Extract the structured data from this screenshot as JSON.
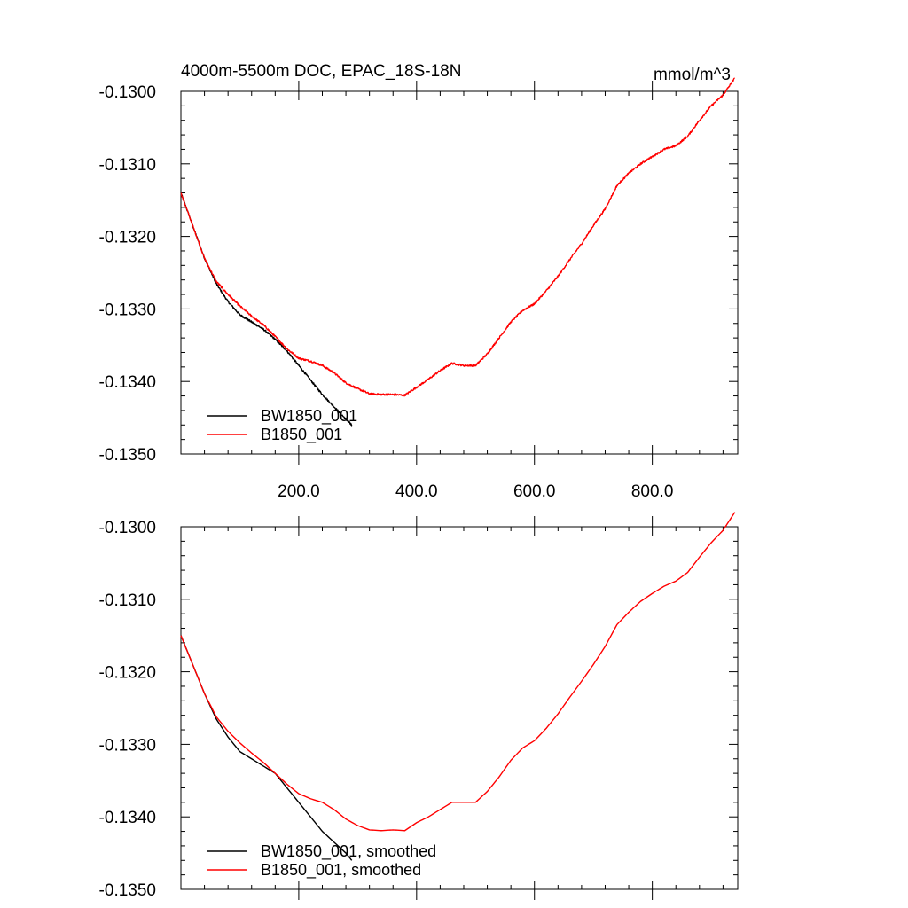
{
  "chart_data": [
    {
      "type": "line",
      "title": "4000m-5500m DOC, EPAC_18S-18N",
      "units": "mmol/m^3",
      "xlabel": "",
      "ylabel": "",
      "xlim": [
        0,
        945
      ],
      "ylim": [
        -0.135,
        -0.13
      ],
      "x_ticks": [
        200,
        400,
        600,
        800
      ],
      "x_tick_labels": [
        "200.0",
        "400.0",
        "600.0",
        "800.0"
      ],
      "y_ticks": [
        -0.13,
        -0.131,
        -0.132,
        -0.133,
        -0.134,
        -0.135
      ],
      "y_tick_labels": [
        "-0.1300",
        "-0.1310",
        "-0.1320",
        "-0.1330",
        "-0.1340",
        "-0.1350"
      ],
      "legend_position": "bottom-left",
      "noisy": true,
      "series": [
        {
          "name": "BW1850_001",
          "color": "#000000",
          "x": [
            0,
            20,
            40,
            60,
            80,
            100,
            120,
            140,
            160,
            180,
            200,
            220,
            240,
            260,
            280,
            290
          ],
          "y": [
            -0.1314,
            -0.13185,
            -0.1323,
            -0.13265,
            -0.1329,
            -0.13308,
            -0.13318,
            -0.13328,
            -0.13342,
            -0.13358,
            -0.13378,
            -0.13398,
            -0.13418,
            -0.13435,
            -0.13452,
            -0.1346
          ]
        },
        {
          "name": "B1850_001",
          "color": "#ff0000",
          "x": [
            0,
            20,
            40,
            60,
            80,
            100,
            120,
            140,
            160,
            180,
            200,
            220,
            240,
            260,
            280,
            300,
            320,
            340,
            360,
            380,
            400,
            420,
            440,
            460,
            480,
            500,
            520,
            540,
            560,
            580,
            600,
            620,
            640,
            660,
            680,
            700,
            720,
            740,
            760,
            780,
            800,
            820,
            840,
            860,
            880,
            900,
            920,
            940
          ],
          "y": [
            -0.1314,
            -0.13185,
            -0.1323,
            -0.13262,
            -0.1328,
            -0.13296,
            -0.1331,
            -0.13322,
            -0.13338,
            -0.13355,
            -0.13368,
            -0.13372,
            -0.13378,
            -0.13388,
            -0.13402,
            -0.1341,
            -0.13417,
            -0.13418,
            -0.13418,
            -0.13419,
            -0.13408,
            -0.13397,
            -0.13385,
            -0.13375,
            -0.13378,
            -0.13378,
            -0.13362,
            -0.1334,
            -0.13318,
            -0.13302,
            -0.13293,
            -0.13275,
            -0.13255,
            -0.13232,
            -0.1321,
            -0.13185,
            -0.13162,
            -0.1313,
            -0.13113,
            -0.131,
            -0.1309,
            -0.1308,
            -0.13075,
            -0.13062,
            -0.1304,
            -0.1302,
            -0.13005,
            -0.12982
          ]
        }
      ]
    },
    {
      "type": "line",
      "title": "",
      "xlabel": "",
      "ylabel": "",
      "xlim": [
        0,
        945
      ],
      "ylim": [
        -0.135,
        -0.13
      ],
      "x_ticks": [
        200,
        400,
        600,
        800
      ],
      "y_ticks": [
        -0.13,
        -0.131,
        -0.132,
        -0.133,
        -0.134,
        -0.135
      ],
      "y_tick_labels": [
        "-0.1300",
        "-0.1310",
        "-0.1320",
        "-0.1330",
        "-0.1340",
        "-0.1350"
      ],
      "legend_position": "bottom-left",
      "noisy": false,
      "series": [
        {
          "name": "BW1850_001, smoothed",
          "color": "#000000",
          "x": [
            0,
            20,
            40,
            60,
            80,
            100,
            120,
            140,
            160,
            180,
            200,
            220,
            240,
            260,
            280,
            290
          ],
          "y": [
            -0.1315,
            -0.1319,
            -0.1323,
            -0.13265,
            -0.1329,
            -0.1331,
            -0.1332,
            -0.1333,
            -0.1334,
            -0.1336,
            -0.1338,
            -0.134,
            -0.1342,
            -0.13435,
            -0.1345,
            -0.1346
          ]
        },
        {
          "name": "B1850_001, smoothed",
          "color": "#ff0000",
          "x": [
            0,
            20,
            40,
            60,
            80,
            100,
            120,
            140,
            160,
            180,
            200,
            220,
            240,
            260,
            280,
            300,
            320,
            340,
            360,
            380,
            400,
            420,
            440,
            460,
            480,
            500,
            520,
            540,
            560,
            580,
            600,
            620,
            640,
            660,
            680,
            700,
            720,
            740,
            760,
            780,
            800,
            820,
            840,
            860,
            880,
            900,
            920,
            940
          ],
          "y": [
            -0.1315,
            -0.1319,
            -0.1323,
            -0.13262,
            -0.13282,
            -0.13298,
            -0.13312,
            -0.13325,
            -0.1334,
            -0.13355,
            -0.13368,
            -0.13375,
            -0.1338,
            -0.1339,
            -0.13403,
            -0.13412,
            -0.13418,
            -0.13419,
            -0.13418,
            -0.13419,
            -0.13408,
            -0.134,
            -0.1339,
            -0.1338,
            -0.1338,
            -0.1338,
            -0.13365,
            -0.13345,
            -0.13322,
            -0.13305,
            -0.13295,
            -0.13278,
            -0.13258,
            -0.13235,
            -0.13213,
            -0.1319,
            -0.13165,
            -0.13135,
            -0.13118,
            -0.13103,
            -0.13092,
            -0.13082,
            -0.13075,
            -0.13063,
            -0.13042,
            -0.13022,
            -0.13005,
            -0.1298
          ]
        }
      ]
    }
  ]
}
